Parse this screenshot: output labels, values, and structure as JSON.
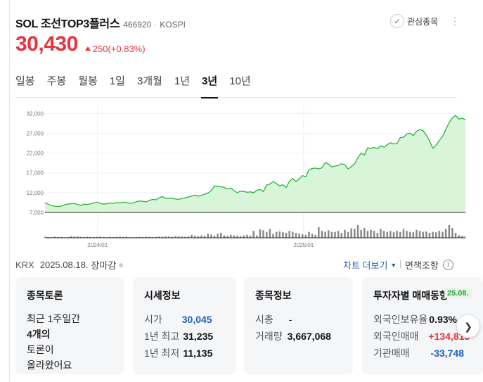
{
  "stock": {
    "name": "SOL 조선TOP3플러스",
    "code": "466920",
    "separator": "·",
    "market": "KOSPI",
    "price": "30,430",
    "change": "250(+0.83%)",
    "watch_label": "관심종목"
  },
  "tabs": [
    "일봉",
    "주봉",
    "월봉",
    "1일",
    "3개월",
    "1년",
    "3년",
    "10년"
  ],
  "active_tab": "3년",
  "status": {
    "exchange": "KRX",
    "date": "2025.08.18.",
    "state": "장마감",
    "chart_link": "차트 더보기",
    "separator": "|",
    "disclaimer": "면책조항"
  },
  "cards": {
    "discussion": {
      "title": "종목토론",
      "lines": [
        "최근 1주일간",
        "4개의",
        "토론이",
        "올라왔어요"
      ],
      "count_line_index": 1
    },
    "market_info": {
      "title": "시세정보",
      "rows": [
        {
          "label": "시가",
          "value": "30,045",
          "color": "#1f5fc6"
        },
        {
          "label": "1년 최고",
          "value": "31,235",
          "color": "#111111"
        },
        {
          "label": "1년 최저",
          "value": "11,135",
          "color": "#111111"
        }
      ]
    },
    "stock_info": {
      "title": "종목정보",
      "rows": [
        {
          "label": "시총",
          "value": "-"
        },
        {
          "label": "거래량",
          "value": "3,667,068"
        }
      ]
    },
    "investor": {
      "title": "투자자별 매매동향",
      "badge": "25.08.",
      "rows": [
        {
          "label": "외국인보유율",
          "value": "0.93%",
          "color": "#111111"
        },
        {
          "label": "외국인매매",
          "value": "+134,813",
          "color": "#e5343d"
        },
        {
          "label": "기관매매",
          "value": "-33,748",
          "color": "#1f5fc6"
        }
      ]
    }
  },
  "chart_data": {
    "type": "area",
    "y_ticks": [
      "32,000",
      "27,000",
      "22,000",
      "17,000",
      "12,000",
      "7,000"
    ],
    "y_tick_values": [
      32000,
      27000,
      22000,
      17000,
      12000,
      7000
    ],
    "ylim": [
      7000,
      34000
    ],
    "x_ticks": [
      "2024/01",
      "2025/01"
    ],
    "x_tick_positions": [
      0.125,
      0.615
    ],
    "line_color": "#27b33a",
    "fill_color": "#d9f5d9",
    "volume_color": "#888888",
    "values": [
      9400,
      9100,
      8700,
      8600,
      8500,
      8600,
      8900,
      9100,
      9200,
      9300,
      9000,
      8800,
      9100,
      9000,
      9200,
      9400,
      9600,
      9300,
      9100,
      9200,
      9400,
      9300,
      9500,
      9400,
      9600,
      9500,
      9300,
      9400,
      9700,
      9900,
      9800,
      9700,
      10000,
      10300,
      10200,
      10700,
      11000,
      10600,
      10500,
      10600,
      10400,
      10300,
      10500,
      10700,
      10900,
      11100,
      11400,
      11100,
      11300,
      11600,
      11900,
      12500,
      13700,
      13600,
      13500,
      13300,
      12900,
      13200,
      12500,
      12000,
      12400,
      12300,
      12100,
      12200,
      12000,
      12600,
      12800,
      12300,
      13900,
      14200,
      14800,
      14300,
      13700,
      14000,
      13300,
      14900,
      15600,
      14800,
      15500,
      16300,
      16000,
      17800,
      18100,
      18200,
      18000,
      18300,
      19600,
      19200,
      18500,
      18700,
      18900,
      19300,
      19000,
      18000,
      18600,
      19300,
      20800,
      22000,
      21500,
      23300,
      23200,
      23400,
      23100,
      23800,
      23500,
      24100,
      24600,
      24300,
      24400,
      25900,
      26000,
      26800,
      27000,
      26400,
      27500,
      27900,
      27700,
      26500,
      25100,
      23200,
      24000,
      25200,
      26200,
      28000,
      29700,
      30900,
      31500,
      30600,
      30800,
      30430
    ],
    "volumes": [
      0.05,
      0.04,
      0.03,
      0.06,
      0.04,
      0.05,
      0.03,
      0.04,
      0.08,
      0.06,
      0.07,
      0.05,
      0.04,
      0.06,
      0.05,
      0.04,
      0.05,
      0.06,
      0.04,
      0.03,
      0.05,
      0.04,
      0.05,
      0.06,
      0.04,
      0.05,
      0.04,
      0.03,
      0.04,
      0.05,
      0.04,
      0.06,
      0.05,
      0.04,
      0.05,
      0.06,
      0.05,
      0.07,
      0.06,
      0.05,
      0.08,
      0.07,
      0.06,
      0.05,
      0.07,
      0.15,
      0.1,
      0.08,
      0.12,
      0.1,
      0.2,
      0.16,
      0.1,
      0.2,
      0.25,
      0.12,
      0.1,
      0.15,
      0.12,
      0.1,
      0.08,
      0.12,
      0.15,
      0.1,
      0.35,
      0.12,
      0.42,
      0.38,
      0.3,
      0.45,
      0.2,
      0.3,
      0.32,
      0.28,
      0.25,
      0.35,
      0.3,
      0.25,
      0.2,
      0.18,
      0.15,
      0.3,
      0.2,
      0.15,
      0.55,
      0.35,
      0.3,
      0.38,
      0.3,
      0.3,
      0.35,
      0.25,
      0.4,
      0.3,
      0.48,
      0.45,
      0.65,
      0.4,
      0.5,
      0.35,
      0.4,
      0.35,
      0.25,
      0.45,
      0.35,
      0.3,
      0.35,
      0.28,
      0.35,
      0.3,
      0.45,
      0.35,
      0.3,
      0.28,
      0.4,
      0.35,
      0.3,
      0.32,
      0.25,
      0.3,
      0.28,
      0.35,
      0.3,
      0.45,
      0.65,
      0.5,
      0.25,
      0.12,
      0.1,
      0.1
    ]
  }
}
